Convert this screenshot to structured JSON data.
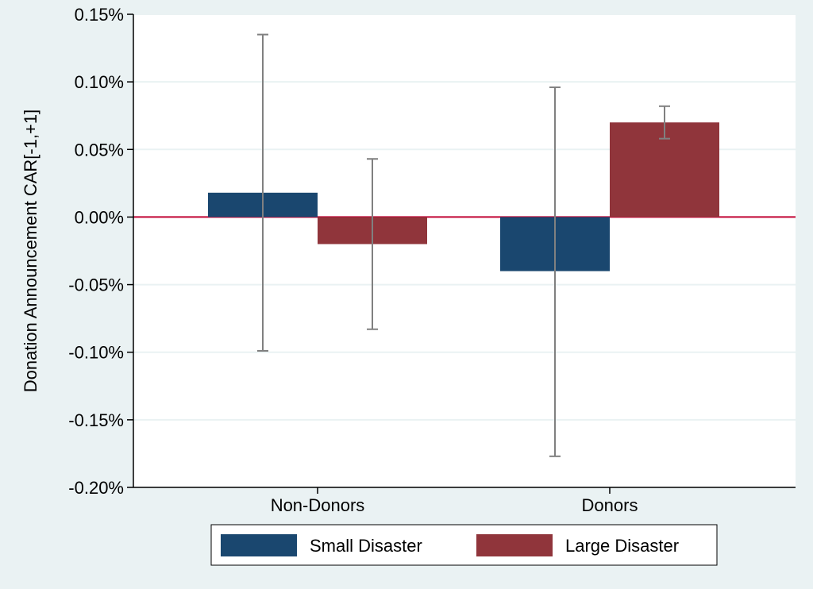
{
  "chart_data": {
    "type": "bar",
    "title": "",
    "xlabel": "",
    "ylabel": "Donation Announcement CAR[-1,+1]",
    "categories": [
      "Non-Donors",
      "Donors"
    ],
    "series": [
      {
        "name": "Small Disaster",
        "color": "#1a476f",
        "values": [
          0.018,
          -0.04
        ],
        "ci_low": [
          -0.099,
          -0.177
        ],
        "ci_high": [
          0.135,
          0.096
        ]
      },
      {
        "name": "Large Disaster",
        "color": "#90353b",
        "values": [
          -0.02,
          0.07
        ],
        "ci_low": [
          -0.083,
          0.058
        ],
        "ci_high": [
          0.043,
          0.082
        ]
      }
    ],
    "ylim": [
      -0.2,
      0.15
    ],
    "yticks": [
      0.15,
      0.1,
      0.05,
      0.0,
      -0.05,
      -0.1,
      -0.15,
      -0.2
    ],
    "ytick_labels": [
      "0.15%",
      "0.10%",
      "0.05%",
      "0.00%",
      "-0.05%",
      "-0.10%",
      "-0.15%",
      "-0.20%"
    ],
    "grid": true,
    "zero_line_color": "#c10534",
    "errorbar_color": "#808080",
    "legend_position": "bottom"
  }
}
